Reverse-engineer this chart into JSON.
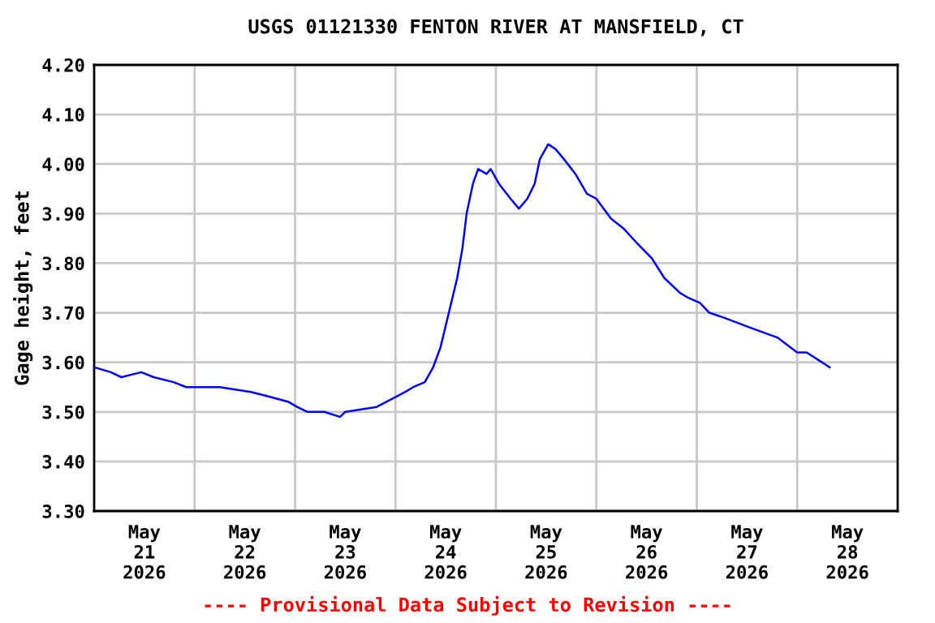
{
  "chart_data": {
    "type": "line",
    "title": "USGS 01121330 FENTON RIVER AT MANSFIELD, CT",
    "ylabel": "Gage height, feet",
    "x": [
      "2026-05-21T00:00",
      "2026-05-21T04:00",
      "2026-05-21T06:30",
      "2026-05-21T11:15",
      "2026-05-21T14:15",
      "2026-05-21T19:00",
      "2026-05-21T22:00",
      "2026-05-22T06:00",
      "2026-05-22T13:30",
      "2026-05-22T18:15",
      "2026-05-22T22:30",
      "2026-05-23T00:30",
      "2026-05-23T03:00",
      "2026-05-23T07:00",
      "2026-05-23T10:45",
      "2026-05-23T12:00",
      "2026-05-23T19:30",
      "2026-05-24T02:15",
      "2026-05-24T04:15",
      "2026-05-24T07:00",
      "2026-05-24T09:00",
      "2026-05-24T10:45",
      "2026-05-24T12:45",
      "2026-05-24T14:45",
      "2026-05-24T16:00",
      "2026-05-24T17:00",
      "2026-05-24T18:30",
      "2026-05-24T19:45",
      "2026-05-24T21:45",
      "2026-05-24T22:45",
      "2026-05-25T00:45",
      "2026-05-25T03:30",
      "2026-05-25T05:30",
      "2026-05-25T07:30",
      "2026-05-25T09:15",
      "2026-05-25T10:30",
      "2026-05-25T12:30",
      "2026-05-25T14:15",
      "2026-05-25T16:15",
      "2026-05-25T19:00",
      "2026-05-25T21:45",
      "2026-05-26T00:00",
      "2026-05-26T03:30",
      "2026-05-26T06:30",
      "2026-05-26T09:45",
      "2026-05-26T13:15",
      "2026-05-26T16:15",
      "2026-05-26T20:00",
      "2026-05-26T22:00",
      "2026-05-27T00:45",
      "2026-05-27T03:00",
      "2026-05-27T06:30",
      "2026-05-27T12:45",
      "2026-05-27T19:15",
      "2026-05-28T00:00",
      "2026-05-28T02:15",
      "2026-05-28T05:00",
      "2026-05-28T07:45"
    ],
    "series": [
      {
        "color": "#0000ff",
        "values": [
          3.59,
          3.58,
          3.57,
          3.58,
          3.57,
          3.56,
          3.55,
          3.55,
          3.54,
          3.53,
          3.52,
          3.51,
          3.5,
          3.5,
          3.49,
          3.5,
          3.51,
          3.54,
          3.55,
          3.56,
          3.59,
          3.63,
          3.7,
          3.77,
          3.83,
          3.9,
          3.96,
          3.99,
          3.98,
          3.99,
          3.96,
          3.93,
          3.91,
          3.93,
          3.96,
          4.01,
          4.04,
          4.03,
          4.01,
          3.98,
          3.94,
          3.93,
          3.89,
          3.87,
          3.84,
          3.81,
          3.77,
          3.74,
          3.73,
          3.72,
          3.7,
          3.69,
          3.67,
          3.65,
          3.62,
          3.62,
          3.605,
          3.59
        ]
      }
    ],
    "xlim": [
      "2026-05-21T00:00",
      "2026-05-29T00:00"
    ],
    "xticks": [
      {
        "value": "2026-05-21T12:00",
        "label": "May\n21\n2026"
      },
      {
        "value": "2026-05-22T00:00",
        "label": null
      },
      {
        "value": "2026-05-22T12:00",
        "label": "May\n22\n2026"
      },
      {
        "value": "2026-05-23T00:00",
        "label": null
      },
      {
        "value": "2026-05-23T12:00",
        "label": "May\n23\n2026"
      },
      {
        "value": "2026-05-24T00:00",
        "label": null
      },
      {
        "value": "2026-05-24T12:00",
        "label": "May\n24\n2026"
      },
      {
        "value": "2026-05-25T00:00",
        "label": null
      },
      {
        "value": "2026-05-25T12:00",
        "label": "May\n25\n2026"
      },
      {
        "value": "2026-05-26T00:00",
        "label": null
      },
      {
        "value": "2026-05-26T12:00",
        "label": "May\n26\n2026"
      },
      {
        "value": "2026-05-27T00:00",
        "label": null
      },
      {
        "value": "2026-05-27T12:00",
        "label": "May\n27\n2026"
      },
      {
        "value": "2026-05-28T00:00",
        "label": null
      },
      {
        "value": "2026-05-28T12:00",
        "label": "May\n28\n2026"
      }
    ],
    "ylim": [
      3.3,
      4.2
    ],
    "yticks": [
      {
        "value": 3.3,
        "label": "3.30"
      },
      {
        "value": 3.4,
        "label": "3.40"
      },
      {
        "value": 3.5,
        "label": "3.50"
      },
      {
        "value": 3.6,
        "label": "3.60"
      },
      {
        "value": 3.7,
        "label": "3.70"
      },
      {
        "value": 3.8,
        "label": "3.80"
      },
      {
        "value": 3.9,
        "label": "3.90"
      },
      {
        "value": 4.0,
        "label": "4.00"
      },
      {
        "value": 4.1,
        "label": "4.10"
      },
      {
        "value": 4.2,
        "label": "4.20"
      }
    ],
    "grid": true,
    "annotations": [
      "---- Provisional Data Subject to Revision ----"
    ]
  }
}
